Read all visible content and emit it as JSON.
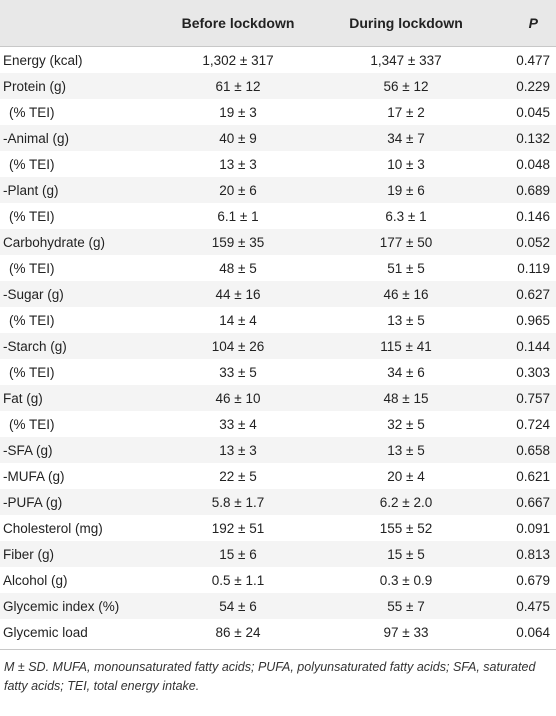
{
  "table": {
    "headers": [
      "",
      "Before lockdown",
      "During lockdown",
      "P"
    ],
    "rows": [
      {
        "label": "Energy (kcal)",
        "before": "1,302 ± 317",
        "during": "1,347 ± 337",
        "p": "0.477",
        "indent": false
      },
      {
        "label": "Protein (g)",
        "before": "61 ± 12",
        "during": "56 ± 12",
        "p": "0.229",
        "indent": false
      },
      {
        "label": "(% TEI)",
        "before": "19 ± 3",
        "during": "17 ± 2",
        "p": "0.045",
        "indent": true
      },
      {
        "label": "-Animal (g)",
        "before": "40 ± 9",
        "during": "34 ± 7",
        "p": "0.132",
        "indent": false
      },
      {
        "label": "(% TEI)",
        "before": "13 ± 3",
        "during": "10 ± 3",
        "p": "0.048",
        "indent": true
      },
      {
        "label": "-Plant (g)",
        "before": "20 ± 6",
        "during": "19 ± 6",
        "p": "0.689",
        "indent": false
      },
      {
        "label": "(% TEI)",
        "before": "6.1 ± 1",
        "during": "6.3 ± 1",
        "p": "0.146",
        "indent": true
      },
      {
        "label": "Carbohydrate (g)",
        "before": "159 ± 35",
        "during": "177 ± 50",
        "p": "0.052",
        "indent": false
      },
      {
        "label": "(% TEI)",
        "before": "48 ± 5",
        "during": "51 ± 5",
        "p": "0.119",
        "indent": true
      },
      {
        "label": "-Sugar (g)",
        "before": "44 ± 16",
        "during": "46 ± 16",
        "p": "0.627",
        "indent": false
      },
      {
        "label": "(% TEI)",
        "before": "14 ± 4",
        "during": "13 ± 5",
        "p": "0.965",
        "indent": true
      },
      {
        "label": "-Starch (g)",
        "before": "104 ± 26",
        "during": "115 ± 41",
        "p": "0.144",
        "indent": false
      },
      {
        "label": "(% TEI)",
        "before": "33 ± 5",
        "during": "34 ± 6",
        "p": "0.303",
        "indent": true
      },
      {
        "label": "Fat (g)",
        "before": "46 ± 10",
        "during": "48 ± 15",
        "p": "0.757",
        "indent": false
      },
      {
        "label": "(% TEI)",
        "before": "33 ± 4",
        "during": "32 ± 5",
        "p": "0.724",
        "indent": true
      },
      {
        "label": "-SFA (g)",
        "before": "13 ± 3",
        "during": "13 ± 5",
        "p": "0.658",
        "indent": false
      },
      {
        "label": "-MUFA (g)",
        "before": "22 ± 5",
        "during": "20 ± 4",
        "p": "0.621",
        "indent": false
      },
      {
        "label": "-PUFA (g)",
        "before": "5.8 ± 1.7",
        "during": "6.2 ± 2.0",
        "p": "0.667",
        "indent": false
      },
      {
        "label": "Cholesterol (mg)",
        "before": "192 ± 51",
        "during": "155 ± 52",
        "p": "0.091",
        "indent": false
      },
      {
        "label": "Fiber (g)",
        "before": "15 ± 6",
        "during": "15 ± 5",
        "p": "0.813",
        "indent": false
      },
      {
        "label": "Alcohol (g)",
        "before": "0.5 ± 1.1",
        "during": "0.3 ± 0.9",
        "p": "0.679",
        "indent": false
      },
      {
        "label": "Glycemic index (%)",
        "before": "54 ± 6",
        "during": "55 ± 7",
        "p": "0.475",
        "indent": false
      },
      {
        "label": "Glycemic load",
        "before": "86 ± 24",
        "during": "97 ± 33",
        "p": "0.064",
        "indent": false
      }
    ]
  },
  "footnote": "M ± SD. MUFA, monounsaturated fatty acids; PUFA, polyunsaturated fatty acids; SFA, saturated fatty acids; TEI, total energy intake."
}
